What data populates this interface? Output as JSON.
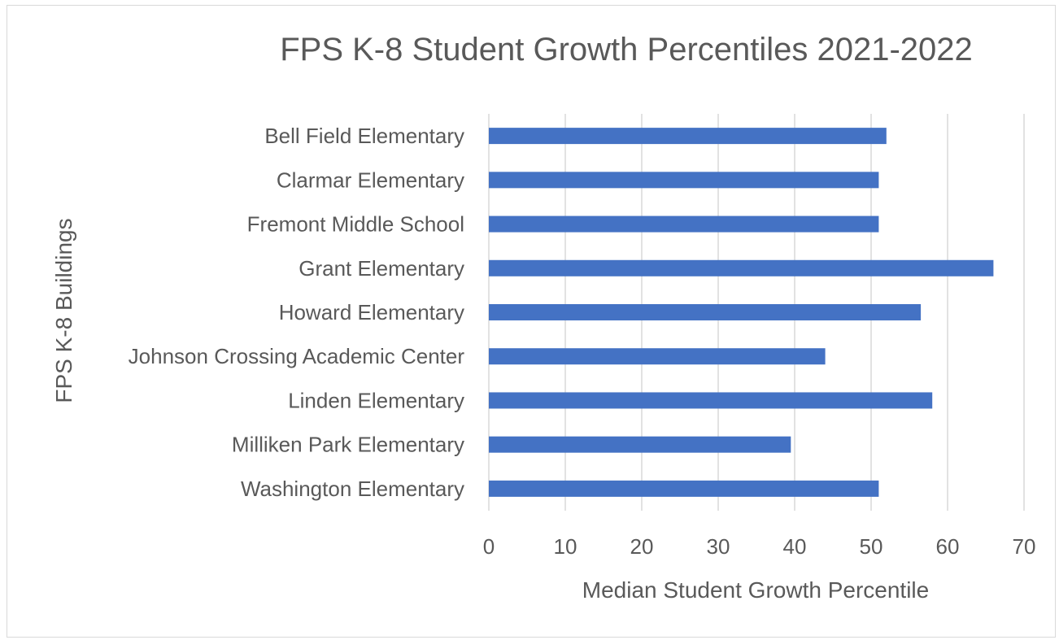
{
  "chart_data": {
    "type": "bar",
    "orientation": "horizontal",
    "title": "FPS K-8 Student Growth Percentiles 2021-2022",
    "xlabel": "Median Student Growth Percentile",
    "ylabel": "FPS K-8 Buildings",
    "categories": [
      "Bell Field Elementary",
      "Clarmar Elementary",
      "Fremont Middle School",
      "Grant Elementary",
      "Howard Elementary",
      "Johnson Crossing Academic Center",
      "Linden Elementary",
      "Milliken Park Elementary",
      "Washington Elementary"
    ],
    "values": [
      52,
      51,
      51,
      66,
      56.5,
      44,
      58,
      39.5,
      51
    ],
    "xlim": [
      0,
      70
    ],
    "xticks": [
      "0",
      "10",
      "20",
      "30",
      "40",
      "50",
      "60",
      "70"
    ],
    "grid": true,
    "legend": "none",
    "bar_color": "#4472c4",
    "grid_color": "#d9d9d9",
    "text_color": "#595959"
  }
}
